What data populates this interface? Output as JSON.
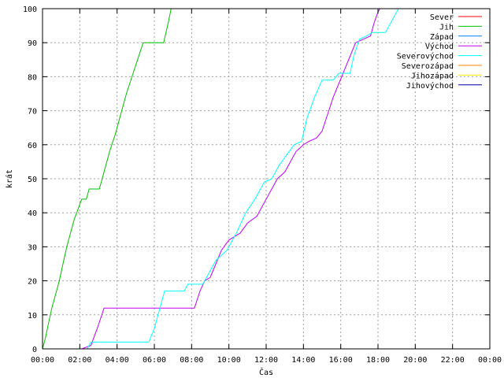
{
  "chart_data": {
    "type": "line",
    "title": "",
    "xlabel": "Čas",
    "ylabel": "krát",
    "x_unit": "hours",
    "xlim": [
      0,
      24
    ],
    "ylim": [
      0,
      100
    ],
    "grid": true,
    "legend_position": "top-right",
    "x_tick_values": [
      0,
      2,
      4,
      6,
      8,
      10,
      12,
      14,
      16,
      18,
      20,
      22,
      24
    ],
    "x_tick_labels": [
      "00:00",
      "02:00",
      "04:00",
      "06:00",
      "08:00",
      "10:00",
      "12:00",
      "14:00",
      "16:00",
      "18:00",
      "20:00",
      "22:00",
      "00:00"
    ],
    "y_tick_values": [
      0,
      10,
      20,
      30,
      40,
      50,
      60,
      70,
      80,
      90,
      100
    ],
    "y_tick_labels": [
      "0",
      "10",
      "20",
      "30",
      "40",
      "50",
      "60",
      "70",
      "80",
      "90",
      "100"
    ],
    "series": [
      {
        "name": "Sever",
        "color": "#ff0000",
        "points": []
      },
      {
        "name": "Jih",
        "color": "#00c000",
        "points": [
          [
            0.0,
            0
          ],
          [
            0.15,
            3
          ],
          [
            0.3,
            7
          ],
          [
            0.5,
            12
          ],
          [
            0.7,
            16
          ],
          [
            0.9,
            20
          ],
          [
            1.1,
            25
          ],
          [
            1.3,
            30
          ],
          [
            1.5,
            34
          ],
          [
            1.7,
            38
          ],
          [
            1.9,
            41
          ],
          [
            2.1,
            44
          ],
          [
            2.35,
            44
          ],
          [
            2.5,
            47
          ],
          [
            3.05,
            47
          ],
          [
            3.3,
            52
          ],
          [
            3.6,
            58
          ],
          [
            3.9,
            63
          ],
          [
            4.2,
            69
          ],
          [
            4.5,
            75
          ],
          [
            4.8,
            80
          ],
          [
            5.1,
            85
          ],
          [
            5.4,
            90
          ],
          [
            6.5,
            90
          ],
          [
            6.75,
            96
          ],
          [
            6.9,
            100
          ]
        ]
      },
      {
        "name": "Západ",
        "color": "#0080ff",
        "points": []
      },
      {
        "name": "Východ",
        "color": "#c000ff",
        "points": [
          [
            2.1,
            0
          ],
          [
            2.6,
            1
          ],
          [
            3.0,
            7
          ],
          [
            3.3,
            12
          ],
          [
            8.15,
            12
          ],
          [
            8.45,
            17
          ],
          [
            8.7,
            20
          ],
          [
            9.0,
            21
          ],
          [
            9.3,
            25
          ],
          [
            9.6,
            29
          ],
          [
            10.0,
            32
          ],
          [
            10.6,
            34
          ],
          [
            11.0,
            37
          ],
          [
            11.5,
            39
          ],
          [
            11.9,
            43
          ],
          [
            12.3,
            47
          ],
          [
            12.6,
            50
          ],
          [
            13.0,
            52
          ],
          [
            13.3,
            55
          ],
          [
            13.6,
            58
          ],
          [
            14.0,
            60
          ],
          [
            14.3,
            61
          ],
          [
            14.7,
            62
          ],
          [
            15.0,
            64
          ],
          [
            15.3,
            69
          ],
          [
            15.6,
            74
          ],
          [
            15.9,
            78
          ],
          [
            16.2,
            82
          ],
          [
            16.5,
            86
          ],
          [
            16.8,
            90
          ],
          [
            17.2,
            91
          ],
          [
            17.6,
            92
          ],
          [
            17.8,
            96
          ],
          [
            18.0,
            99
          ],
          [
            18.1,
            100
          ]
        ]
      },
      {
        "name": "Severovýchod",
        "color": "#00ffff",
        "points": [
          [
            2.4,
            0
          ],
          [
            2.6,
            2
          ],
          [
            5.7,
            2
          ],
          [
            6.0,
            6
          ],
          [
            6.3,
            12
          ],
          [
            6.55,
            17
          ],
          [
            7.6,
            17
          ],
          [
            7.8,
            19
          ],
          [
            8.6,
            19
          ],
          [
            9.0,
            23
          ],
          [
            9.3,
            26
          ],
          [
            9.9,
            29
          ],
          [
            10.4,
            34
          ],
          [
            10.9,
            40
          ],
          [
            11.4,
            44
          ],
          [
            11.9,
            49
          ],
          [
            12.3,
            50
          ],
          [
            12.7,
            54
          ],
          [
            13.1,
            57
          ],
          [
            13.5,
            60
          ],
          [
            13.9,
            61
          ],
          [
            14.2,
            68
          ],
          [
            14.6,
            74
          ],
          [
            15.0,
            79
          ],
          [
            15.6,
            79
          ],
          [
            15.9,
            81
          ],
          [
            16.5,
            81
          ],
          [
            16.7,
            86
          ],
          [
            17.0,
            91
          ],
          [
            17.4,
            92
          ],
          [
            17.7,
            93
          ],
          [
            18.4,
            93
          ],
          [
            18.8,
            97
          ],
          [
            19.1,
            100
          ]
        ]
      },
      {
        "name": "Severozápad",
        "color": "#ff8000",
        "points": []
      },
      {
        "name": "Jihozápad",
        "color": "#ffee00",
        "points": []
      },
      {
        "name": "Jihovýchod",
        "color": "#0000a0",
        "points": []
      }
    ]
  }
}
